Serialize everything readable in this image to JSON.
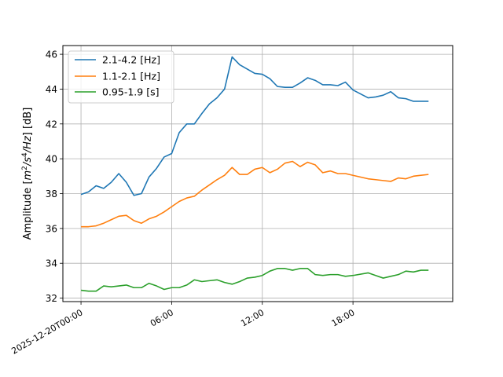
{
  "chart_data": {
    "type": "line",
    "title": "",
    "xlabel": "",
    "ylabel": "Amplitude [m²/s⁴/Hz] [dB]",
    "ylabel_parts": {
      "pre": "Amplitude [",
      "m": "m",
      "sup2": "2",
      "s": "/s",
      "sup4": "4",
      "hz": "/Hz",
      "post": "] [dB]"
    },
    "x_tick_labels": [
      {
        "t": "2025-12-20T00:00:00",
        "label": "2025-12-20T00:00"
      },
      {
        "t": "2025-12-20T06:00:00",
        "label": "06:00"
      },
      {
        "t": "2025-12-20T12:00:00",
        "label": "12:00"
      },
      {
        "t": "2025-12-20T18:00:00",
        "label": "18:00"
      }
    ],
    "xlim": [
      "2025-12-19T22:48:00",
      "2025-12-21T00:36:00"
    ],
    "ylim": [
      31.8,
      46.5
    ],
    "yticks": [
      32,
      34,
      36,
      38,
      40,
      42,
      44,
      46
    ],
    "grid": true,
    "legend": "top-left",
    "x": [
      "2025-12-20T00:00",
      "2025-12-20T00:30",
      "2025-12-20T01:00",
      "2025-12-20T01:30",
      "2025-12-20T02:00",
      "2025-12-20T02:30",
      "2025-12-20T03:00",
      "2025-12-20T03:30",
      "2025-12-20T04:00",
      "2025-12-20T04:30",
      "2025-12-20T05:00",
      "2025-12-20T05:30",
      "2025-12-20T06:00",
      "2025-12-20T06:30",
      "2025-12-20T07:00",
      "2025-12-20T07:30",
      "2025-12-20T08:00",
      "2025-12-20T08:30",
      "2025-12-20T09:00",
      "2025-12-20T09:30",
      "2025-12-20T10:00",
      "2025-12-20T10:30",
      "2025-12-20T11:00",
      "2025-12-20T11:30",
      "2025-12-20T12:00",
      "2025-12-20T12:30",
      "2025-12-20T13:00",
      "2025-12-20T13:30",
      "2025-12-20T14:00",
      "2025-12-20T14:30",
      "2025-12-20T15:00",
      "2025-12-20T15:30",
      "2025-12-20T16:00",
      "2025-12-20T16:30",
      "2025-12-20T17:00",
      "2025-12-20T17:30",
      "2025-12-20T18:00",
      "2025-12-20T19:00",
      "2025-12-20T19:30",
      "2025-12-20T20:00",
      "2025-12-20T20:30",
      "2025-12-20T21:00",
      "2025-12-20T21:30",
      "2025-12-20T22:00",
      "2025-12-20T22:30",
      "2025-12-20T23:00"
    ],
    "series": [
      {
        "name": "2.1-4.2 [Hz]",
        "color": "#1f77b4",
        "values": [
          37.95,
          38.1,
          38.45,
          38.3,
          38.65,
          39.15,
          38.65,
          37.9,
          38.0,
          38.95,
          39.45,
          40.1,
          40.3,
          41.5,
          42.0,
          42.0,
          42.6,
          43.15,
          43.5,
          44.0,
          45.85,
          45.4,
          45.15,
          44.9,
          44.85,
          44.6,
          44.15,
          44.1,
          44.1,
          44.35,
          44.65,
          44.5,
          44.25,
          44.25,
          44.2,
          44.4,
          43.95,
          43.5,
          43.55,
          43.65,
          43.85,
          43.5,
          43.45,
          43.3,
          43.3,
          43.3
        ]
      },
      {
        "name": "1.1-2.1 [Hz]",
        "color": "#ff7f0e",
        "values": [
          36.1,
          36.1,
          36.15,
          36.3,
          36.5,
          36.7,
          36.75,
          36.45,
          36.3,
          36.55,
          36.7,
          36.95,
          37.25,
          37.55,
          37.75,
          37.85,
          38.2,
          38.5,
          38.8,
          39.05,
          39.5,
          39.1,
          39.1,
          39.4,
          39.5,
          39.2,
          39.4,
          39.75,
          39.85,
          39.55,
          39.8,
          39.65,
          39.2,
          39.3,
          39.15,
          39.15,
          39.05,
          38.85,
          38.8,
          38.75,
          38.7,
          38.9,
          38.85,
          39.0,
          39.05,
          39.1
        ]
      },
      {
        "name": "0.95-1.9 [s]",
        "color": "#2ca02c",
        "values": [
          32.45,
          32.4,
          32.4,
          32.7,
          32.65,
          32.7,
          32.75,
          32.6,
          32.6,
          32.85,
          32.7,
          32.5,
          32.6,
          32.6,
          32.75,
          33.05,
          32.95,
          33.0,
          33.05,
          32.9,
          32.8,
          32.95,
          33.15,
          33.2,
          33.3,
          33.55,
          33.7,
          33.7,
          33.6,
          33.7,
          33.7,
          33.35,
          33.3,
          33.35,
          33.35,
          33.25,
          33.3,
          33.45,
          33.3,
          33.15,
          33.25,
          33.35,
          33.55,
          33.5,
          33.6,
          33.6
        ]
      }
    ]
  }
}
